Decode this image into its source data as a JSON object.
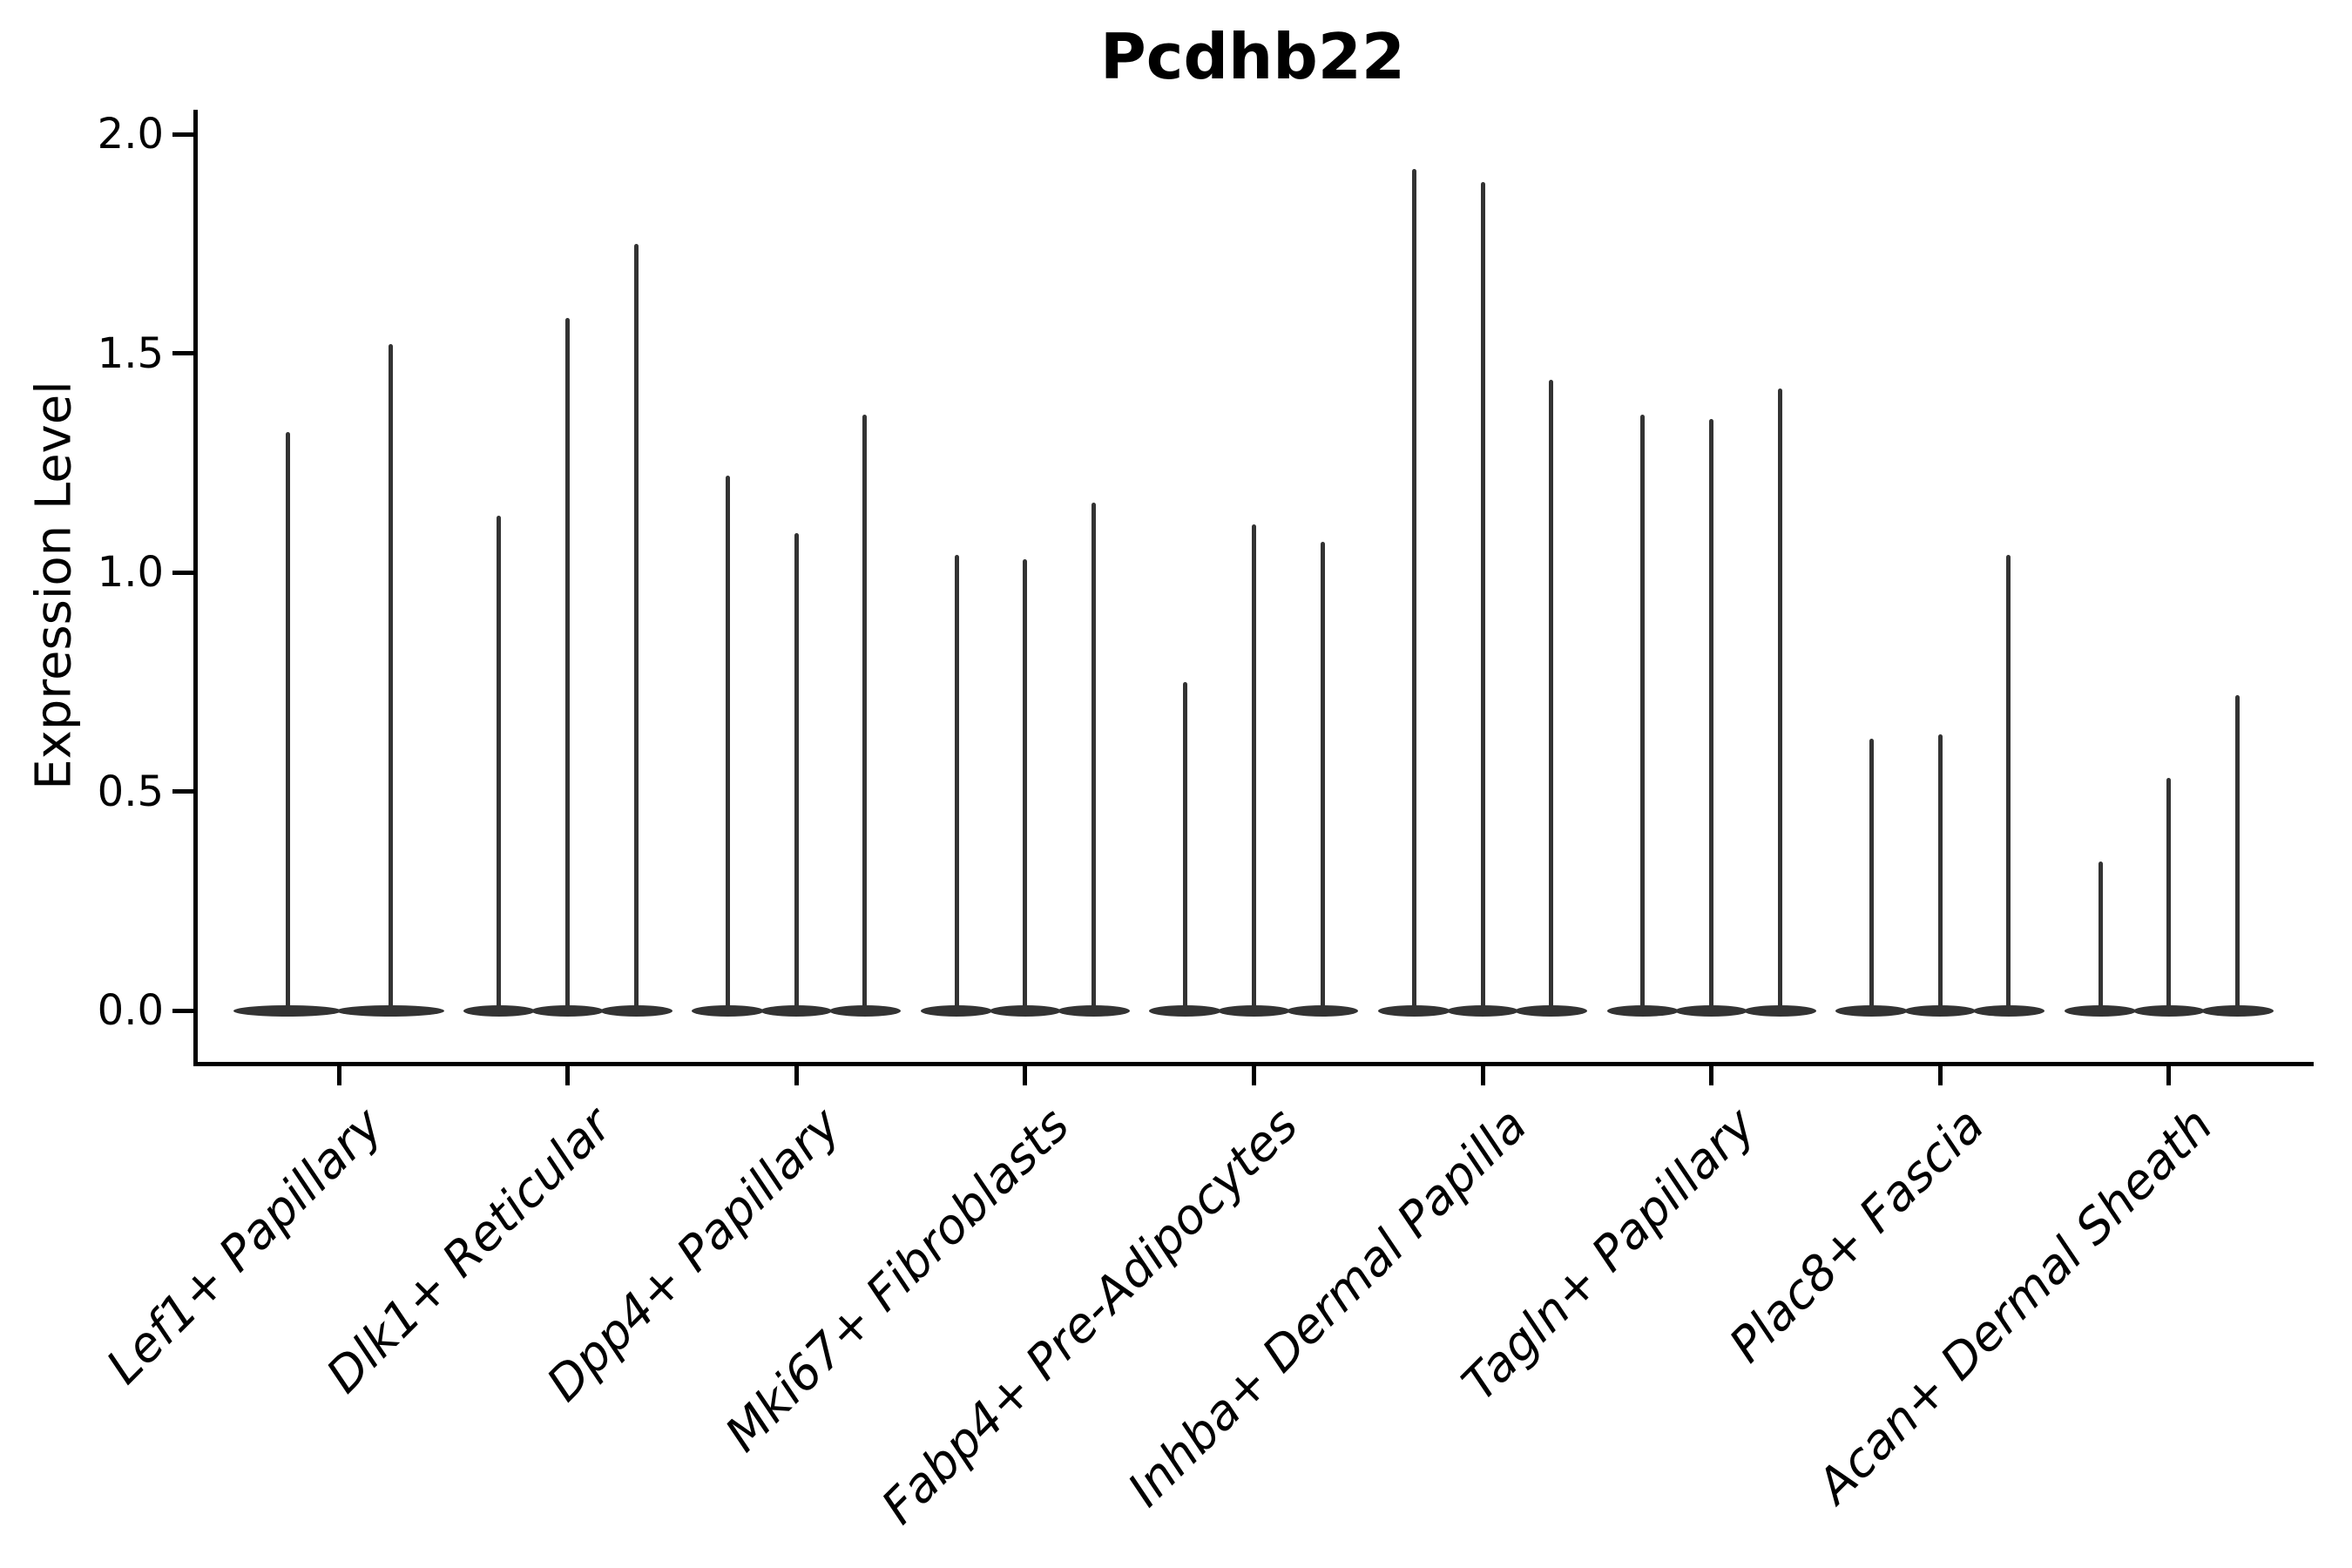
{
  "figure": {
    "background": "#ffffff"
  },
  "chart_data": {
    "type": "violin",
    "title": "Pcdhb22",
    "ylabel": "Expression Level",
    "xlabel": "",
    "grid": false,
    "legend": null,
    "ylim": [
      -0.12,
      2.06
    ],
    "yticks": [
      0,
      0.5,
      1,
      1.5,
      2
    ],
    "ytick_labels": [
      "0.0",
      "0.5",
      "1.0",
      "1.5",
      "2.0"
    ],
    "violin_color": "#333333",
    "axis_color": "#000000",
    "categories": [
      "Lef1+ Papillary",
      "Dlk1+ Reticular",
      "Dpp4+ Papillary",
      "Mki67+ Fibroblasts",
      "Fabp4+ Pre-Adipocytes",
      "Inhba+ Dermal Papilla",
      "Tagln+ Papillary",
      "Plac8+ Fascia",
      "Acan+ Dermal Sheath"
    ],
    "series": [
      {
        "category": "Lef1+ Papillary",
        "violin_max_values": [
          1.32,
          1.52
        ]
      },
      {
        "category": "Dlk1+ Reticular",
        "violin_max_values": [
          1.13,
          1.58,
          1.75
        ]
      },
      {
        "category": "Dpp4+ Papillary",
        "violin_max_values": [
          1.22,
          1.09,
          1.36
        ]
      },
      {
        "category": "Mki67+ Fibroblasts",
        "violin_max_values": [
          1.04,
          1.03,
          1.16
        ]
      },
      {
        "category": "Fabp4+ Pre-Adipocytes",
        "violin_max_values": [
          0.75,
          1.11,
          1.07
        ]
      },
      {
        "category": "Inhba+ Dermal Papilla",
        "violin_max_values": [
          1.92,
          1.89,
          1.44
        ]
      },
      {
        "category": "Tagln+ Papillary",
        "violin_max_values": [
          1.36,
          1.35,
          1.42
        ]
      },
      {
        "category": "Plac8+ Fascia",
        "violin_max_values": [
          0.62,
          0.63,
          1.04
        ]
      },
      {
        "category": "Acan+ Dermal Sheath",
        "violin_max_values": [
          0.34,
          0.53,
          0.72
        ]
      }
    ],
    "description": "Violin bodies are concentrated at expression 0 (flat wide base) with a thin tail rising to each listed maximum expression value."
  }
}
